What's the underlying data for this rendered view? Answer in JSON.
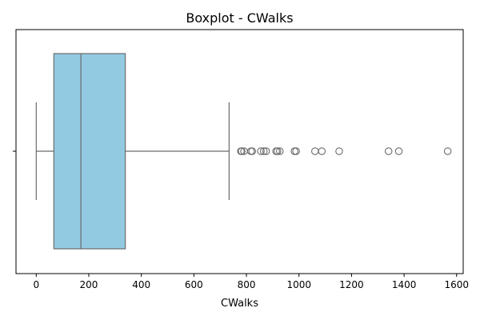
{
  "chart_data": {
    "type": "boxplot",
    "title": "Boxplot - CWalks",
    "xlabel": "CWalks",
    "ylabel": "",
    "xlim": [
      -77,
      1625
    ],
    "x_ticks": [
      0,
      200,
      400,
      600,
      800,
      1000,
      1200,
      1400,
      1600
    ],
    "x_tick_labels": [
      "0",
      "200",
      "400",
      "600",
      "800",
      "1000",
      "1200",
      "1400",
      "1600"
    ],
    "box_color": "#92cae2",
    "line_color": "#6b6b6b",
    "series": [
      {
        "whisker_low": 0,
        "q1": 67,
        "median": 170,
        "q3": 339,
        "whisker_high": 734,
        "outliers": [
          779,
          782,
          791,
          817,
          822,
          855,
          866,
          875,
          913,
          918,
          927,
          983,
          989,
          1061,
          1087,
          1153,
          1341,
          1380,
          1566
        ]
      }
    ]
  }
}
